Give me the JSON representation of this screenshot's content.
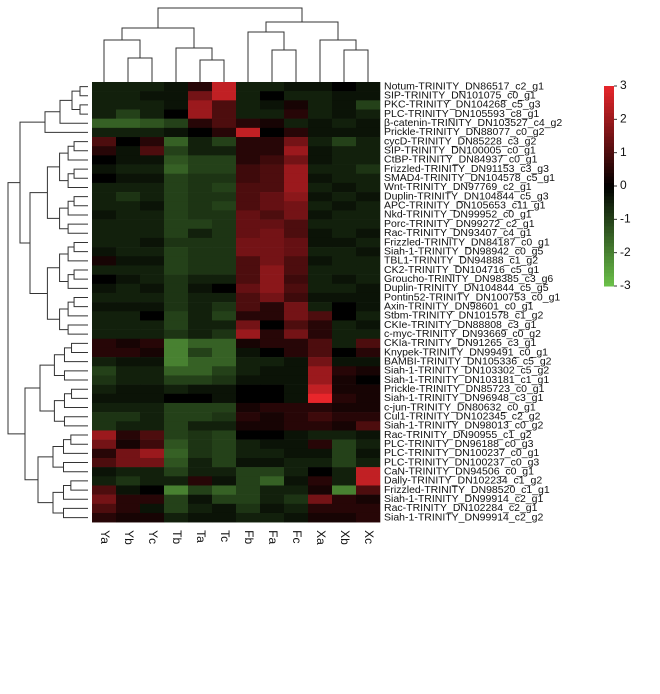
{
  "chart_data": {
    "type": "heatmap",
    "columns": [
      "Ya",
      "Yb",
      "Yc",
      "Tb",
      "Ta",
      "Tc",
      "Fb",
      "Fa",
      "Fc",
      "Xa",
      "Xb",
      "Xc"
    ],
    "rows": [
      "Notum-TRINITY_DN86517_c2_g1",
      "SIP-TRINITY_DN101075_c0_g1",
      "PKC-TRINITY_DN104268_c5_g3",
      "PLC-TRINITY_DN105593_c8_g1",
      "β-catenin-TRINITY_DN103527_c4_g2",
      "Prickle-TRINITY_DN88077_c0_g2",
      "cycD-TRINITY_DN85228_c3_g2",
      "SIP-TRINITY_DN100005_c0_g1",
      "CtBP-TRINITY_DN84937_c0_g1",
      "Frizzled-TRINITY_DN91153_c3_g3",
      "SMAD4-TRINITY_DN104578_c5_g1",
      "Wnt-TRINITY_DN97769_c2_g1",
      "Duplin-TRINITY_DN104844_c5_g3",
      "APC-TRINITY_DN105653_c11_g1",
      "Nkd-TRINITY_DN99952_c0_g1",
      "Porc-TRINITY_DN99272_c2_g1",
      "Rac-TRINITY_DN93407_c4_g1",
      "Frizzled-TRINITY_DN84187_c0_g1",
      "Siah-1-TRINITY_DN98942_c0_g5",
      "TBL1-TRINITY_DN94888_c1_g2",
      "CK2-TRINITY_DN104716_c5_g1",
      "Groucho-TRINITY_DN98385_c3_g6",
      "Duplin-TRINITY_DN104844_c5_g5",
      "Pontin52-TRINITY_DN100753_c0_g1",
      "Axin-TRINITY_DN98601_c0_g1",
      "Stbm-TRINITY_DN101578_c1_g2",
      "CKIe-TRINITY_DN88808_c3_g1",
      "c-myc-TRINITY_DN93669_c0_g2",
      "CKIa-TRINITY_DN91265_c3_g1",
      "Knypek-TRINITY_DN99491_c0_g1",
      "BAMBI-TRINITY_DN105336_c5_g2",
      "Siah-1-TRINITY_DN103302_c5_g2",
      "Siah-1-TRINITY_DN103181_c1_g1",
      "Prickle-TRINITY_DN85723_c0_g1",
      "Siah-1-TRINITY_DN96948_c3_g1",
      "c-jun-TRINITY_DN80632_c0_g1",
      "Cul1-TRINITY_DN102345_c2_g2",
      "Siah-1-TRINITY_DN98013_c0_g2",
      "Rac-TRINITY_DN90955_c1_g2",
      "PLC-TRINITY_DN96188_c0_g3",
      "PLC-TRINITY_DN100237_c0_g1",
      "PLC-TRINITY_DN100237_c0_g3",
      "CaN-TRINITY_DN94506_c0_g1",
      "Dally-TRINITY_DN102234_c1_g2",
      "Frizzled-TRINITY_DN98520_c1_g1",
      "Siah-1-TRINITY_DN99914_c2_g1",
      "Rac-TRINITY_DN102284_c2_g1",
      "Siah-1-TRINITY_DN99914_c2_g2"
    ],
    "values": [
      [
        -0.5,
        -0.5,
        -0.5,
        -0.3,
        0.5,
        2.5,
        -0.5,
        -0.5,
        -0.3,
        -0.3,
        0,
        -0.3
      ],
      [
        -0.5,
        -0.5,
        -0.3,
        -0.3,
        1.5,
        2.5,
        -0.5,
        0,
        -0.5,
        -0.5,
        -0.3,
        -0.3
      ],
      [
        -0.5,
        -0.5,
        -0.5,
        -0.3,
        2,
        1,
        -0.5,
        -0.3,
        0.3,
        -0.5,
        -0.3,
        -1
      ],
      [
        -0.5,
        -1,
        -0.5,
        0,
        2,
        1,
        -0.5,
        -0.5,
        0.5,
        -0.5,
        -0.3,
        -0.5
      ],
      [
        -1.5,
        -1.5,
        -1.3,
        -1,
        0.5,
        1,
        0.5,
        0.3,
        -0.5,
        -0.3,
        -0.5,
        -0.3
      ],
      [
        -0.5,
        -0.5,
        -0.5,
        -0.3,
        0,
        0.5,
        2.5,
        0,
        0.5,
        -0.3,
        -0.3,
        -0.3
      ],
      [
        1,
        0,
        0.5,
        -1.5,
        -0.5,
        -1,
        0.5,
        0.5,
        1.5,
        -0.5,
        -1,
        -0.5
      ],
      [
        0.5,
        -0.3,
        1,
        -1,
        -0.5,
        -0.5,
        0.5,
        0.5,
        2,
        -0.3,
        -0.5,
        -0.5
      ],
      [
        0,
        -0.3,
        -0.3,
        -1.3,
        -1,
        -1,
        0.5,
        0.8,
        1.5,
        -0.3,
        -0.5,
        -0.5
      ],
      [
        -0.3,
        -0.5,
        -0.5,
        -1.5,
        -1,
        -1,
        0.8,
        1,
        2,
        -0.5,
        -0.5,
        -0.8
      ],
      [
        0,
        -0.3,
        -0.3,
        -1,
        -0.8,
        -0.8,
        0.8,
        1,
        2,
        -0.3,
        -0.5,
        -0.5
      ],
      [
        -0.5,
        -0.5,
        -0.5,
        -1,
        -0.8,
        -1,
        1,
        1,
        2,
        -0.5,
        -0.3,
        -0.5
      ],
      [
        -0.5,
        -0.8,
        -0.5,
        -1,
        -0.8,
        -0.8,
        1,
        1.3,
        1.8,
        -0.3,
        -0.5,
        -0.3
      ],
      [
        -0.5,
        -0.5,
        -0.3,
        -1,
        -0.8,
        -1,
        1,
        1.3,
        1.5,
        -0.5,
        -0.3,
        -0.5
      ],
      [
        -0.3,
        -0.5,
        -0.5,
        -1,
        -0.8,
        -0.8,
        1.3,
        1,
        1.5,
        -0.3,
        -0.5,
        -0.5
      ],
      [
        -0.5,
        -0.5,
        -0.5,
        -1,
        -1,
        -0.8,
        1.3,
        1.3,
        1,
        -0.5,
        -0.5,
        -0.5
      ],
      [
        -0.5,
        -0.5,
        -0.5,
        -1,
        -0.5,
        -0.8,
        1.3,
        1.5,
        1,
        -0.3,
        -0.5,
        -0.3
      ],
      [
        -0.5,
        -0.5,
        -0.3,
        -0.8,
        -0.8,
        -0.8,
        1.5,
        1.5,
        1.3,
        -0.3,
        -0.3,
        -0.5
      ],
      [
        -0.3,
        -0.5,
        -0.5,
        -1,
        -0.8,
        -0.8,
        1.5,
        1.5,
        1.3,
        -0.5,
        -0.5,
        -0.3
      ],
      [
        0.3,
        -0.3,
        -0.3,
        -1,
        -0.8,
        -0.8,
        1,
        1.5,
        1,
        -0.3,
        -0.5,
        -0.5
      ],
      [
        -0.5,
        -0.5,
        -0.5,
        -1,
        -0.8,
        -0.8,
        1,
        1.8,
        1,
        -0.5,
        -0.5,
        -0.5
      ],
      [
        0,
        -0.3,
        -0.5,
        -0.8,
        -0.5,
        -0.5,
        1,
        1.8,
        0.8,
        -0.5,
        -0.3,
        -0.5
      ],
      [
        -0.3,
        -0.5,
        -0.3,
        -0.8,
        -0.3,
        0,
        1.3,
        1.8,
        1,
        -0.5,
        -0.5,
        -0.3
      ],
      [
        -0.5,
        -0.5,
        -0.5,
        -0.8,
        -0.5,
        -0.5,
        1,
        1.5,
        0.8,
        -0.3,
        -0.3,
        -0.3
      ],
      [
        -0.3,
        -0.3,
        -0.3,
        -0.8,
        -0.5,
        -0.8,
        1,
        0.5,
        1.5,
        -0.5,
        0,
        -0.3
      ],
      [
        -0.5,
        -0.5,
        0,
        -1,
        -0.5,
        -1,
        0.5,
        0.5,
        1.5,
        1,
        0,
        -0.5
      ],
      [
        -0.5,
        -0.5,
        -0.5,
        -1,
        -0.5,
        -0.5,
        1.5,
        0,
        1,
        0.5,
        -0.5,
        -0.3
      ],
      [
        -0.5,
        -0.5,
        -0.5,
        -0.8,
        -0.5,
        -0.8,
        2,
        0.5,
        1.5,
        0.5,
        -0.5,
        -0.5
      ],
      [
        0.5,
        0.3,
        0.5,
        -2,
        -1.5,
        -1.5,
        0.3,
        0.5,
        0.5,
        1,
        -0.5,
        1
      ],
      [
        0.5,
        0.5,
        0.3,
        -2,
        -1,
        -1.5,
        -0.3,
        0,
        0.5,
        1,
        0,
        0.5
      ],
      [
        -0.5,
        -0.3,
        -0.3,
        -2,
        -1.5,
        -1.5,
        -0.5,
        -0.5,
        -0.3,
        1.5,
        -0.3,
        -0.3
      ],
      [
        -1,
        -0.5,
        -0.5,
        -1.5,
        -1.5,
        -1,
        -0.5,
        -0.3,
        -0.3,
        2,
        0.5,
        0.3
      ],
      [
        -0.8,
        -0.5,
        -0.5,
        -1,
        -1,
        -0.8,
        -0.3,
        -0.3,
        -0.3,
        2,
        0.3,
        0
      ],
      [
        -0.5,
        -0.3,
        -0.3,
        -0.5,
        -0.3,
        -0.3,
        0,
        0,
        -0.3,
        2.5,
        0.3,
        0.3
      ],
      [
        -0.3,
        -0.3,
        -0.3,
        0,
        0,
        -0.3,
        0,
        0,
        -0.3,
        3,
        0.5,
        0.3
      ],
      [
        -0.5,
        -0.5,
        -0.5,
        -1,
        -1,
        -1,
        0.3,
        0.5,
        0.5,
        0.5,
        0.3,
        0.3
      ],
      [
        -0.8,
        -0.8,
        -0.5,
        -1,
        -1,
        -0.8,
        0.5,
        0.3,
        0.5,
        0.8,
        0.5,
        0.5
      ],
      [
        -0.8,
        -0.5,
        -0.5,
        -1,
        -0.5,
        -0.5,
        0.3,
        0.3,
        0.5,
        0.5,
        0.3,
        1
      ],
      [
        2,
        0.5,
        1,
        -1,
        -0.8,
        -1,
        0,
        0,
        -0.3,
        -0.5,
        -0.5,
        -0.3
      ],
      [
        1.5,
        0.3,
        0.8,
        -1.3,
        -0.8,
        -1,
        -0.5,
        -0.3,
        -0.3,
        0.5,
        -1,
        -0.5
      ],
      [
        0.5,
        1.5,
        2,
        -1.5,
        -0.8,
        -1,
        -0.5,
        -0.5,
        -0.3,
        -0.3,
        -1,
        -0.3
      ],
      [
        1,
        1.5,
        1.5,
        -1.3,
        -0.5,
        -1,
        -0.3,
        -0.3,
        -0.5,
        -0.5,
        -1,
        -0.5
      ],
      [
        -0.3,
        -0.5,
        -0.5,
        -1,
        -0.5,
        -0.5,
        -1,
        -1,
        -0.5,
        0,
        -0.5,
        2.5
      ],
      [
        -0.5,
        -0.8,
        -0.5,
        -0.5,
        0.5,
        -0.3,
        -1,
        -1.5,
        -0.3,
        0.5,
        -0.5,
        2.5
      ],
      [
        1,
        -0.3,
        0,
        -2,
        -1,
        -1.5,
        -1,
        -0.5,
        -0.5,
        0.3,
        -2,
        1
      ],
      [
        1.5,
        0.5,
        0.5,
        -1,
        -0.3,
        -1,
        -1,
        -0.5,
        -0.8,
        1.5,
        0.5,
        0.3
      ],
      [
        1,
        0.5,
        -0.3,
        -1,
        -0.5,
        -0.3,
        -0.8,
        -0.3,
        -0.5,
        0.5,
        0.5,
        0.5
      ],
      [
        0.5,
        0.3,
        0.3,
        -0.5,
        -0.3,
        -0.3,
        -0.5,
        -0.5,
        -0.3,
        0.3,
        0.3,
        0.5
      ]
    ],
    "zlim": [
      -3,
      3
    ],
    "colorbar_ticks": [
      3,
      2,
      1,
      0,
      -1,
      -2,
      -3
    ],
    "colormap": [
      "#6cc24a",
      "#000000",
      "#e8262b"
    ]
  }
}
